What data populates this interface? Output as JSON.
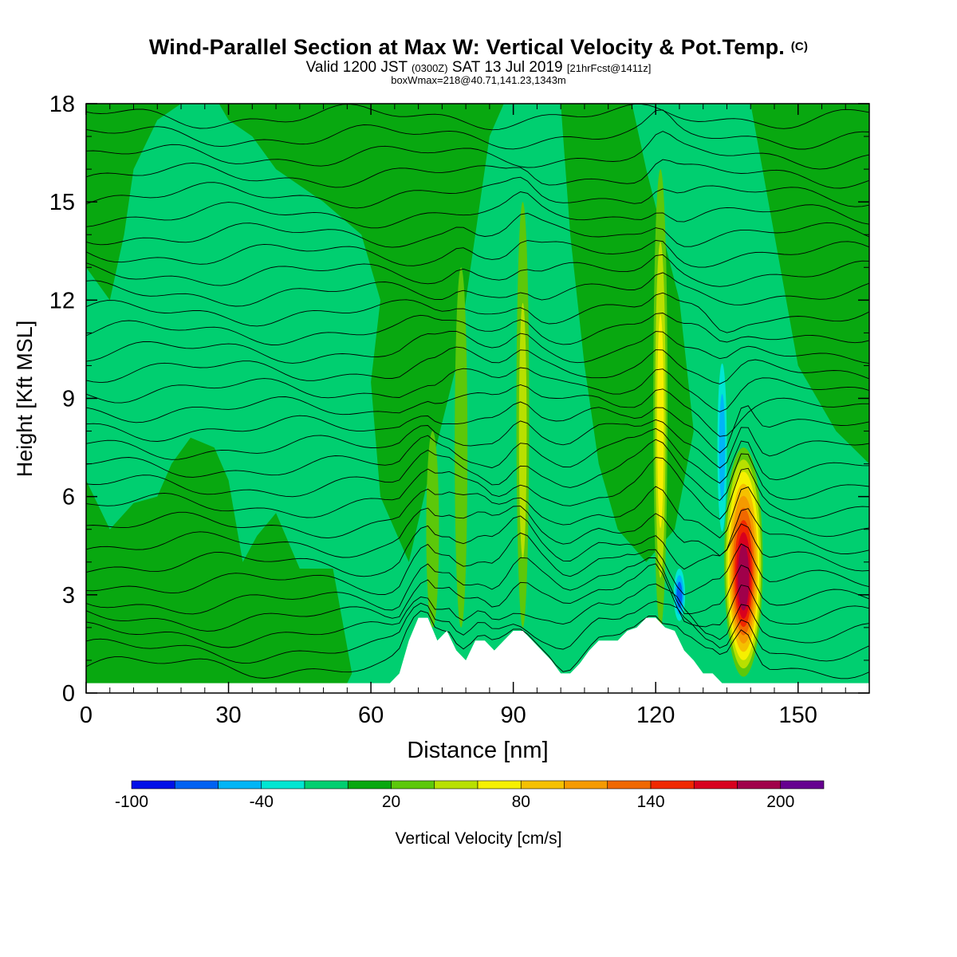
{
  "title": {
    "main": "Wind-Parallel Section at Max W: Vertical Velocity & Pot.Temp.",
    "copyright": "(C)",
    "valid_prefix": "Valid 1200 JST",
    "valid_utc": "(0300Z)",
    "valid_date": "SAT 13 Jul 2019",
    "valid_fcst": "[21hrFcst@1411z]",
    "box": "boxWmax=218@40.71,141.23,1343m"
  },
  "chart_data": {
    "type": "heatmap",
    "xlabel": "Distance [nm]",
    "ylabel": "Height [Kft MSL]",
    "xlim": [
      0,
      165
    ],
    "ylim": [
      0,
      18
    ],
    "x_ticks": [
      0,
      30,
      60,
      90,
      120,
      150
    ],
    "y_ticks": [
      0,
      3,
      6,
      9,
      12,
      15,
      18
    ],
    "colorbar": {
      "label": "Vertical Velocity [cm/s]",
      "min": -100,
      "max": 220,
      "step": 20,
      "tick_labels": [
        -100,
        -40,
        20,
        80,
        140,
        200
      ],
      "colors": [
        "#0010e8",
        "#0062f2",
        "#00b5f6",
        "#00e6d2",
        "#00cf70",
        "#08a810",
        "#5cc80a",
        "#b8e000",
        "#f6f000",
        "#f5c000",
        "#f59a00",
        "#f06800",
        "#f02800",
        "#d8001e",
        "#a0004a",
        "#660090"
      ]
    },
    "field_colors": {
      "base": "#00cf70",
      "weak_up": "#08a810"
    },
    "updraft_cores": [
      {
        "x": 138.5,
        "z_bottom": 0.5,
        "z_top": 7.5,
        "w_max": 218
      },
      {
        "x": 121,
        "z_bottom": 2,
        "z_top": 16,
        "w_max": 80
      },
      {
        "x": 92,
        "z_bottom": 2,
        "z_top": 15,
        "w_max": 60
      },
      {
        "x": 79,
        "z_bottom": 2,
        "z_top": 13,
        "w_max": 50
      },
      {
        "x": 73,
        "z_bottom": 2,
        "z_top": 8,
        "w_max": 40
      }
    ],
    "downdraft_cores": [
      {
        "x": 125,
        "z_bottom": 2,
        "z_top": 4,
        "w_min": -80
      },
      {
        "x": 134,
        "z_bottom": 4,
        "z_top": 11,
        "w_min": -60
      }
    ],
    "terrain_kft": [
      [
        0,
        0.3
      ],
      [
        62,
        0.3
      ],
      [
        64,
        0.3
      ],
      [
        66,
        0.6
      ],
      [
        68,
        1.6
      ],
      [
        70,
        2.3
      ],
      [
        72,
        2.3
      ],
      [
        74,
        1.6
      ],
      [
        76,
        1.9
      ],
      [
        78,
        1.3
      ],
      [
        80,
        1.0
      ],
      [
        82,
        1.6
      ],
      [
        84,
        1.6
      ],
      [
        86,
        1.3
      ],
      [
        88,
        1.6
      ],
      [
        90,
        1.9
      ],
      [
        92,
        1.9
      ],
      [
        94,
        1.6
      ],
      [
        96,
        1.3
      ],
      [
        98,
        1.0
      ],
      [
        100,
        0.6
      ],
      [
        102,
        0.6
      ],
      [
        104,
        0.9
      ],
      [
        106,
        1.3
      ],
      [
        108,
        1.6
      ],
      [
        110,
        1.6
      ],
      [
        112,
        1.6
      ],
      [
        114,
        1.9
      ],
      [
        116,
        2.0
      ],
      [
        118,
        2.3
      ],
      [
        120,
        2.3
      ],
      [
        122,
        2.0
      ],
      [
        124,
        1.9
      ],
      [
        126,
        1.3
      ],
      [
        128,
        1.0
      ],
      [
        130,
        0.6
      ],
      [
        132,
        0.6
      ],
      [
        134,
        0.3
      ],
      [
        165,
        0.3
      ]
    ],
    "isentrope_heights_kft": [
      0.6,
      1.1,
      1.6,
      2.1,
      2.6,
      3.2,
      3.8,
      4.4,
      5.0,
      5.6,
      6.2,
      6.8,
      7.4,
      8.0,
      8.6,
      9.2,
      9.8,
      10.4,
      11.0,
      11.6,
      12.2,
      12.8,
      13.4,
      14.0,
      14.6,
      15.2,
      15.8,
      16.4,
      17.0,
      17.6
    ]
  }
}
